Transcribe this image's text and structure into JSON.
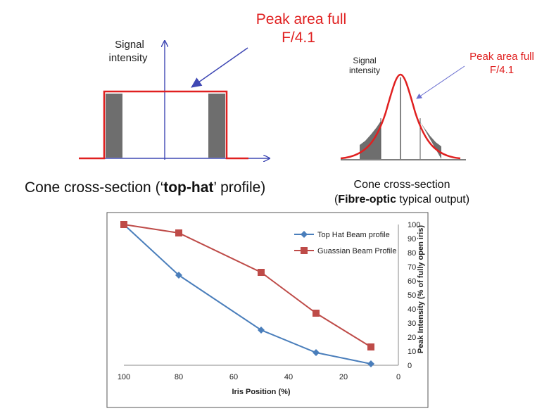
{
  "tophat": {
    "ylabel_line1": "Signal",
    "ylabel_line2": "intensity",
    "peak_line1": "Peak area full",
    "peak_line2": "F/4.1",
    "caption_pre": "Cone cross-section (‘",
    "caption_bold": "top-hat",
    "caption_post": "’ profile)",
    "colors": {
      "profile": "#e02020",
      "shaded": "#6e6e6e",
      "axis": "#3f48b4",
      "annotation": "#e02020"
    }
  },
  "gaussian": {
    "ylabel_line1": "Signal",
    "ylabel_line2": "intensity",
    "peak_line1": "Peak area full",
    "peak_line2": "F/4.1",
    "caption_line1": "Cone cross-section",
    "caption_bold": "Fibre-optic",
    "caption_post": " typical output)",
    "caption_open": "(",
    "colors": {
      "profile": "#e02020",
      "shaded": "#6e6e6e",
      "axis": "#3f48b4",
      "annotation": "#e02020"
    }
  },
  "chart_data": {
    "type": "line",
    "title": "",
    "xlabel": "Iris Position (%)",
    "ylabel": "Peak Intensity (% of fully open iris)",
    "xlim": [
      100,
      0
    ],
    "ylim": [
      0,
      100
    ],
    "x_reversed": true,
    "x_ticks": [
      "100",
      "80",
      "60",
      "40",
      "20",
      "0"
    ],
    "y_ticks": [
      "0",
      "10",
      "20",
      "30",
      "40",
      "50",
      "60",
      "70",
      "80",
      "90",
      "100"
    ],
    "y_axis_side": "right",
    "grid": false,
    "legend_position": "top-right",
    "series": [
      {
        "name": "Top Hat Beam profile",
        "color": "#4a7ebb",
        "marker": "diamond",
        "x": [
          100,
          80,
          50,
          30,
          10
        ],
        "y": [
          100,
          64,
          25,
          9,
          1
        ]
      },
      {
        "name": "Guassian Beam Profile",
        "color": "#be4b48",
        "marker": "square",
        "x": [
          100,
          80,
          50,
          30,
          10
        ],
        "y": [
          100,
          94,
          66,
          37,
          13
        ]
      }
    ]
  }
}
